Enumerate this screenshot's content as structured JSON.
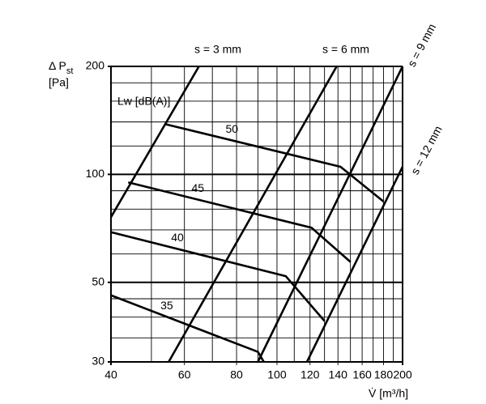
{
  "chart_data": {
    "type": "line",
    "y_label": "Δ P",
    "y_label_sub": "st",
    "y_unit": "[Pa]",
    "x_label": "V̇ [m³/h]",
    "curve_label": "Lw [dB(A)]",
    "log_x": true,
    "log_y": true,
    "xlim": [
      40,
      200
    ],
    "ylim": [
      30,
      200
    ],
    "xticks": [
      40,
      60,
      80,
      100,
      120,
      140,
      160,
      180,
      200
    ],
    "yticks": [
      30,
      50,
      100,
      200
    ],
    "xgrid": [
      50,
      70,
      90,
      110,
      130,
      150,
      170,
      190
    ],
    "ygrid": [
      35,
      40,
      45,
      60,
      70,
      80,
      90,
      120,
      140,
      160,
      180
    ],
    "series": [
      {
        "name": "s = 3 mm",
        "color": "#000000",
        "x": [
          40,
          65
        ],
        "values": [
          76,
          200
        ]
      },
      {
        "name": "s = 6  mm",
        "color": "#000000",
        "x": [
          55,
          139
        ],
        "values": [
          30,
          200
        ]
      },
      {
        "name": "s = 9 mm",
        "color": "#000000",
        "x": [
          90,
          200
        ],
        "values": [
          30,
          200
        ]
      },
      {
        "name": "s = 12 mm",
        "color": "#000000",
        "x": [
          118,
          200
        ],
        "values": [
          30,
          105
        ]
      }
    ],
    "lw_series": [
      {
        "name": "50",
        "color": "#000000",
        "x": [
          54,
          142,
          180
        ],
        "values": [
          138,
          105,
          84
        ]
      },
      {
        "name": "45",
        "color": "#000000",
        "x": [
          44,
          121,
          150
        ],
        "values": [
          95,
          71,
          57
        ]
      },
      {
        "name": "40",
        "color": "#000000",
        "x": [
          40,
          105,
          130
        ],
        "values": [
          69,
          52,
          39
        ]
      },
      {
        "name": "35",
        "color": "#000000",
        "x": [
          40,
          90,
          93
        ],
        "values": [
          46,
          32,
          30
        ]
      }
    ]
  }
}
